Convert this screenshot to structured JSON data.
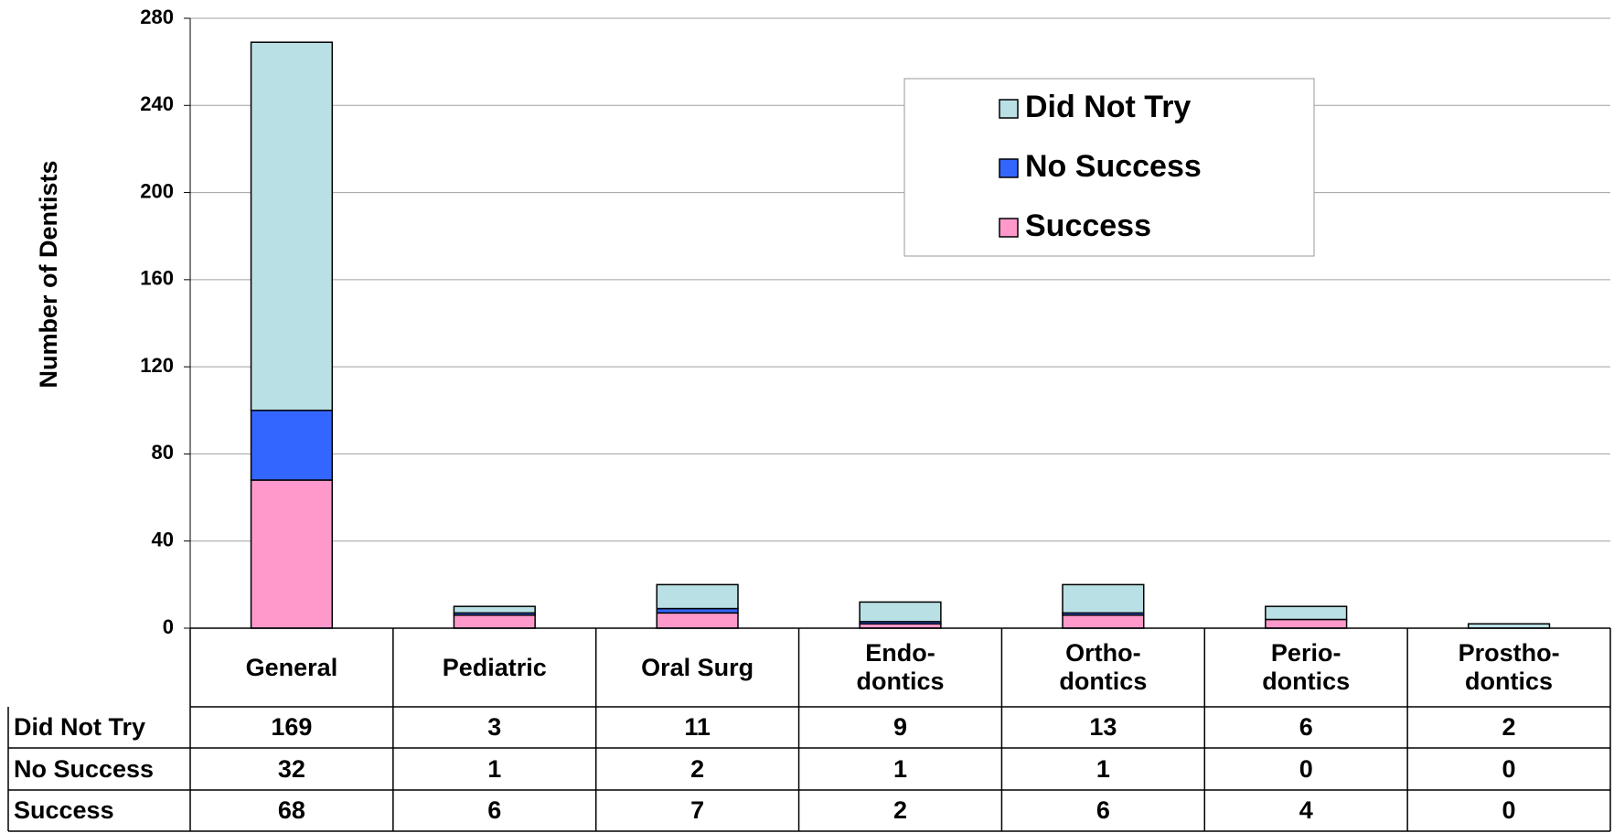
{
  "chart_data": {
    "type": "stacked-bar",
    "y_label": "Number of Dentists",
    "categories": [
      "General",
      "Pediatric",
      "Oral Surg",
      "Endo-\ndontics",
      "Ortho-\ndontics",
      "Perio-\ndontics",
      "Prostho-\ndontics"
    ],
    "series": [
      {
        "name": "Did Not Try",
        "color": "#b9e0e4",
        "values": [
          169,
          3,
          11,
          9,
          13,
          6,
          2
        ]
      },
      {
        "name": "No Success",
        "color": "#3366ff",
        "values": [
          32,
          1,
          2,
          1,
          1,
          0,
          0
        ]
      },
      {
        "name": "Success",
        "color": "#ff99cc",
        "values": [
          68,
          6,
          7,
          2,
          6,
          4,
          0
        ]
      }
    ],
    "stack_order": [
      "Success",
      "No Success",
      "Did Not Try"
    ],
    "ylim": [
      0,
      280
    ],
    "yticks": [
      0,
      40,
      80,
      120,
      160,
      200,
      240,
      280
    ],
    "grid": true,
    "legend": "upper-right",
    "data_table": true
  }
}
